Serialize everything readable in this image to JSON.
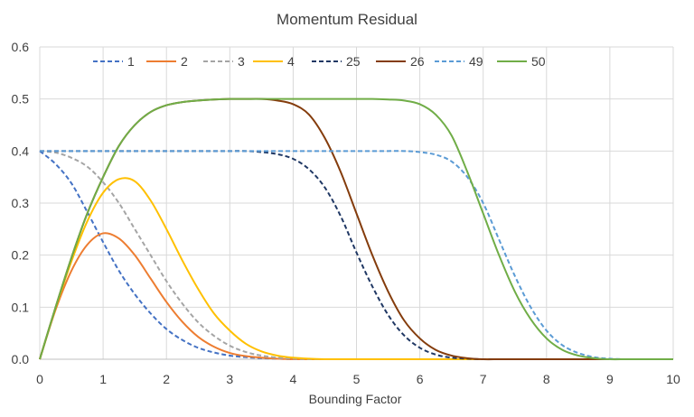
{
  "chart_data": {
    "type": "line",
    "title": "Momentum Residual",
    "xlabel": "Bounding Factor",
    "ylabel": "",
    "xlim": [
      0,
      10
    ],
    "ylim": [
      0,
      0.6
    ],
    "x_ticks": [
      "0",
      "1",
      "2",
      "3",
      "4",
      "5",
      "6",
      "7",
      "8",
      "9",
      "10"
    ],
    "y_ticks": [
      "0.0",
      "0.1",
      "0.2",
      "0.3",
      "0.4",
      "0.5",
      "0.6"
    ],
    "grid": true,
    "legend_position": "top",
    "x": [
      0,
      0.25,
      0.5,
      0.75,
      1,
      1.25,
      1.5,
      1.75,
      2,
      2.25,
      2.5,
      2.75,
      3,
      3.25,
      3.5,
      3.75,
      4,
      4.25,
      4.5,
      4.75,
      5,
      5.25,
      5.5,
      5.75,
      6,
      6.25,
      6.5,
      6.75,
      7,
      7.25,
      7.5,
      7.75,
      8,
      8.25,
      8.5,
      8.75,
      9,
      9.25,
      9.5,
      9.75,
      10
    ],
    "series": [
      {
        "name": "1",
        "color": "#4472c4",
        "dash": "dashed",
        "values": [
          0.4,
          0.375,
          0.338,
          0.283,
          0.225,
          0.17,
          0.125,
          0.088,
          0.058,
          0.037,
          0.022,
          0.013,
          0.007,
          0.004,
          0.002,
          0.001,
          0.0,
          0.0,
          0.0,
          0.0,
          0.0,
          0.0,
          0.0,
          0.0,
          0.0,
          0.0,
          0.0,
          0.0,
          0.0,
          0.0,
          0.0,
          0.0,
          0.0,
          0.0,
          0.0,
          0.0,
          0.0,
          0.0,
          0.0,
          0.0,
          0.0
        ]
      },
      {
        "name": "2",
        "color": "#ed7d31",
        "dash": "solid",
        "values": [
          0.0,
          0.095,
          0.17,
          0.22,
          0.242,
          0.232,
          0.2,
          0.155,
          0.11,
          0.072,
          0.043,
          0.024,
          0.012,
          0.006,
          0.003,
          0.001,
          0.0,
          0.0,
          0.0,
          0.0,
          0.0,
          0.0,
          0.0,
          0.0,
          0.0,
          0.0,
          0.0,
          0.0,
          0.0,
          0.0,
          0.0,
          0.0,
          0.0,
          0.0,
          0.0,
          0.0,
          0.0,
          0.0,
          0.0,
          0.0,
          0.0
        ]
      },
      {
        "name": "3",
        "color": "#a5a5a5",
        "dash": "dashed",
        "values": [
          0.4,
          0.397,
          0.387,
          0.37,
          0.34,
          0.3,
          0.25,
          0.2,
          0.15,
          0.107,
          0.071,
          0.045,
          0.026,
          0.014,
          0.007,
          0.003,
          0.001,
          0.0,
          0.0,
          0.0,
          0.0,
          0.0,
          0.0,
          0.0,
          0.0,
          0.0,
          0.0,
          0.0,
          0.0,
          0.0,
          0.0,
          0.0,
          0.0,
          0.0,
          0.0,
          0.0,
          0.0,
          0.0,
          0.0,
          0.0,
          0.0
        ]
      },
      {
        "name": "4",
        "color": "#ffc000",
        "dash": "solid",
        "values": [
          0.0,
          0.098,
          0.188,
          0.265,
          0.32,
          0.346,
          0.342,
          0.305,
          0.25,
          0.19,
          0.135,
          0.088,
          0.055,
          0.03,
          0.015,
          0.007,
          0.003,
          0.001,
          0.0,
          0.0,
          0.0,
          0.0,
          0.0,
          0.0,
          0.0,
          0.0,
          0.0,
          0.0,
          0.0,
          0.0,
          0.0,
          0.0,
          0.0,
          0.0,
          0.0,
          0.0,
          0.0,
          0.0,
          0.0,
          0.0,
          0.0
        ]
      },
      {
        "name": "25",
        "color": "#203864",
        "dash": "dashed",
        "values": [
          0.4,
          0.4,
          0.4,
          0.4,
          0.4,
          0.4,
          0.4,
          0.4,
          0.4,
          0.4,
          0.4,
          0.4,
          0.4,
          0.4,
          0.398,
          0.394,
          0.385,
          0.365,
          0.33,
          0.275,
          0.205,
          0.14,
          0.085,
          0.046,
          0.022,
          0.009,
          0.003,
          0.001,
          0.0,
          0.0,
          0.0,
          0.0,
          0.0,
          0.0,
          0.0,
          0.0,
          0.0,
          0.0,
          0.0,
          0.0,
          0.0
        ]
      },
      {
        "name": "26",
        "color": "#843c0c",
        "dash": "solid",
        "values": [
          0.0,
          0.1,
          0.195,
          0.28,
          0.35,
          0.41,
          0.45,
          0.475,
          0.488,
          0.494,
          0.497,
          0.499,
          0.5,
          0.5,
          0.5,
          0.497,
          0.49,
          0.47,
          0.425,
          0.36,
          0.28,
          0.2,
          0.13,
          0.075,
          0.04,
          0.018,
          0.007,
          0.002,
          0.0,
          0.0,
          0.0,
          0.0,
          0.0,
          0.0,
          0.0,
          0.0,
          0.0,
          0.0,
          0.0,
          0.0,
          0.0
        ]
      },
      {
        "name": "49",
        "color": "#5b9bd5",
        "dash": "dashed",
        "values": [
          0.4,
          0.4,
          0.4,
          0.4,
          0.4,
          0.4,
          0.4,
          0.4,
          0.4,
          0.4,
          0.4,
          0.4,
          0.4,
          0.4,
          0.4,
          0.4,
          0.4,
          0.4,
          0.4,
          0.4,
          0.4,
          0.4,
          0.4,
          0.4,
          0.398,
          0.393,
          0.38,
          0.35,
          0.3,
          0.23,
          0.16,
          0.1,
          0.055,
          0.027,
          0.012,
          0.004,
          0.001,
          0.0,
          0.0,
          0.0,
          0.0
        ]
      },
      {
        "name": "50",
        "color": "#70ad47",
        "dash": "solid",
        "values": [
          0.0,
          0.1,
          0.195,
          0.28,
          0.35,
          0.41,
          0.45,
          0.475,
          0.488,
          0.494,
          0.497,
          0.499,
          0.5,
          0.5,
          0.5,
          0.5,
          0.5,
          0.5,
          0.5,
          0.5,
          0.5,
          0.5,
          0.499,
          0.497,
          0.49,
          0.47,
          0.43,
          0.36,
          0.28,
          0.2,
          0.13,
          0.077,
          0.04,
          0.018,
          0.007,
          0.002,
          0.0,
          0.0,
          0.0,
          0.0,
          0.0
        ]
      }
    ]
  }
}
